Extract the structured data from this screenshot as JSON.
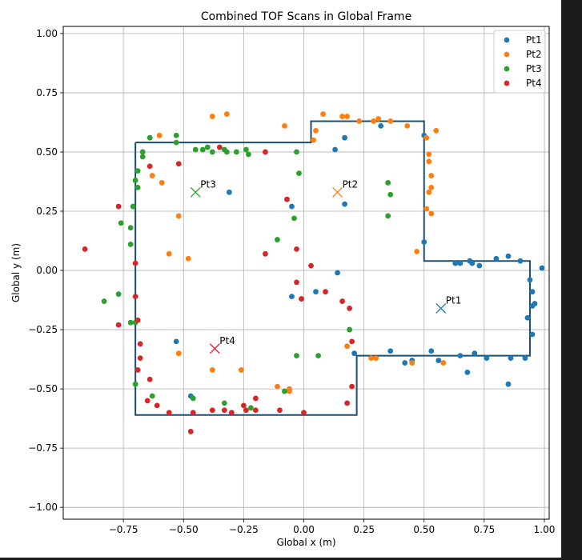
{
  "chart_data": {
    "type": "scatter",
    "title": "Combined TOF Scans in Global Frame",
    "xlabel": "Global x (m)",
    "ylabel": "Global y (m)",
    "xlim": [
      -1.0,
      1.02
    ],
    "ylim": [
      -1.05,
      1.03
    ],
    "xticks": [
      -0.75,
      -0.5,
      -0.25,
      0.0,
      0.25,
      0.5,
      0.75,
      1.0
    ],
    "xtick_labels": [
      "−0.75",
      "−0.50",
      "−0.25",
      "0.00",
      "0.25",
      "0.50",
      "0.75",
      "1.00"
    ],
    "yticks": [
      -1.0,
      -0.75,
      -0.5,
      -0.25,
      0.0,
      0.25,
      0.5,
      0.75,
      1.0
    ],
    "ytick_labels": [
      "−1.00",
      "−0.75",
      "−0.50",
      "−0.25",
      "0.00",
      "0.25",
      "0.50",
      "0.75",
      "1.00"
    ],
    "grid": true,
    "legend_position": "top-right",
    "series": [
      {
        "name": "Pt1",
        "color": "#1f77b4",
        "marker_label": "Pt1",
        "marker": [
          0.57,
          -0.16
        ],
        "points": [
          [
            -0.31,
            0.33
          ],
          [
            -0.05,
            0.27
          ],
          [
            -0.05,
            -0.11
          ],
          [
            0.05,
            -0.09
          ],
          [
            0.13,
            0.51
          ],
          [
            0.14,
            -0.01
          ],
          [
            0.17,
            0.28
          ],
          [
            0.17,
            0.56
          ],
          [
            0.21,
            -0.35
          ],
          [
            0.32,
            0.61
          ],
          [
            0.36,
            -0.34
          ],
          [
            0.42,
            -0.39
          ],
          [
            0.45,
            -0.38
          ],
          [
            0.5,
            0.57
          ],
          [
            0.53,
            -0.34
          ],
          [
            0.56,
            -0.38
          ],
          [
            0.63,
            0.03
          ],
          [
            0.65,
            0.03
          ],
          [
            0.65,
            -0.36
          ],
          [
            0.68,
            -0.43
          ],
          [
            0.69,
            0.04
          ],
          [
            0.7,
            0.03
          ],
          [
            0.71,
            -0.35
          ],
          [
            0.73,
            0.02
          ],
          [
            0.76,
            -0.37
          ],
          [
            0.8,
            0.05
          ],
          [
            0.85,
            0.06
          ],
          [
            0.85,
            -0.48
          ],
          [
            0.86,
            -0.37
          ],
          [
            0.9,
            0.04
          ],
          [
            0.92,
            -0.37
          ],
          [
            0.93,
            -0.2
          ],
          [
            0.94,
            -0.04
          ],
          [
            0.95,
            -0.15
          ],
          [
            0.95,
            -0.09
          ],
          [
            0.96,
            -0.14
          ],
          [
            0.95,
            -0.27
          ],
          [
            0.99,
            0.01
          ],
          [
            -0.53,
            -0.3
          ],
          [
            -0.47,
            -0.53
          ],
          [
            0.5,
            0.12
          ]
        ]
      },
      {
        "name": "Pt2",
        "color": "#ff7f0e",
        "marker_label": "Pt2",
        "marker": [
          0.14,
          0.33
        ],
        "points": [
          [
            -0.38,
            0.65
          ],
          [
            -0.32,
            0.66
          ],
          [
            -0.6,
            0.57
          ],
          [
            -0.63,
            0.4
          ],
          [
            -0.59,
            0.37
          ],
          [
            -0.52,
            0.23
          ],
          [
            -0.56,
            0.07
          ],
          [
            -0.48,
            0.05
          ],
          [
            -0.08,
            0.61
          ],
          [
            0.05,
            0.59
          ],
          [
            0.04,
            0.55
          ],
          [
            0.08,
            0.66
          ],
          [
            0.16,
            0.65
          ],
          [
            0.18,
            0.65
          ],
          [
            0.23,
            0.63
          ],
          [
            0.29,
            0.63
          ],
          [
            0.31,
            0.64
          ],
          [
            0.36,
            0.63
          ],
          [
            0.43,
            0.61
          ],
          [
            0.51,
            0.56
          ],
          [
            0.52,
            0.49
          ],
          [
            0.52,
            0.46
          ],
          [
            0.53,
            0.4
          ],
          [
            0.52,
            0.33
          ],
          [
            0.53,
            0.35
          ],
          [
            0.53,
            0.24
          ],
          [
            0.51,
            0.26
          ],
          [
            0.47,
            0.08
          ],
          [
            0.55,
            0.59
          ],
          [
            -0.52,
            -0.35
          ],
          [
            -0.38,
            -0.42
          ],
          [
            -0.26,
            -0.42
          ],
          [
            -0.11,
            -0.49
          ],
          [
            -0.06,
            -0.5
          ],
          [
            -0.06,
            -0.51
          ],
          [
            0.18,
            -0.32
          ],
          [
            0.28,
            -0.37
          ],
          [
            0.3,
            -0.37
          ],
          [
            0.45,
            -0.39
          ],
          [
            0.58,
            -0.39
          ]
        ]
      },
      {
        "name": "Pt3",
        "color": "#2ca02c",
        "marker_label": "Pt3",
        "marker": [
          -0.45,
          0.33
        ],
        "points": [
          [
            -0.64,
            0.56
          ],
          [
            -0.53,
            0.57
          ],
          [
            -0.53,
            0.54
          ],
          [
            -0.67,
            0.5
          ],
          [
            -0.67,
            0.48
          ],
          [
            -0.45,
            0.51
          ],
          [
            -0.42,
            0.51
          ],
          [
            -0.4,
            0.52
          ],
          [
            -0.38,
            0.5
          ],
          [
            -0.33,
            0.51
          ],
          [
            -0.32,
            0.5
          ],
          [
            -0.28,
            0.5
          ],
          [
            -0.24,
            0.51
          ],
          [
            -0.23,
            0.49
          ],
          [
            -0.03,
            0.5
          ],
          [
            -0.69,
            0.42
          ],
          [
            -0.69,
            0.35
          ],
          [
            -0.7,
            0.38
          ],
          [
            -0.71,
            0.27
          ],
          [
            -0.76,
            0.2
          ],
          [
            -0.72,
            0.18
          ],
          [
            -0.72,
            0.11
          ],
          [
            -0.02,
            0.41
          ],
          [
            0.35,
            0.37
          ],
          [
            0.36,
            0.32
          ],
          [
            0.35,
            0.23
          ],
          [
            -0.04,
            0.22
          ],
          [
            -0.11,
            0.13
          ],
          [
            -0.83,
            -0.13
          ],
          [
            -0.77,
            -0.1
          ],
          [
            -0.72,
            -0.22
          ],
          [
            -0.7,
            -0.22
          ],
          [
            -0.7,
            -0.48
          ],
          [
            -0.63,
            -0.53
          ],
          [
            -0.46,
            -0.54
          ],
          [
            -0.33,
            -0.56
          ],
          [
            -0.22,
            -0.58
          ],
          [
            -0.08,
            -0.51
          ],
          [
            -0.03,
            -0.36
          ],
          [
            0.06,
            -0.36
          ],
          [
            0.19,
            -0.25
          ]
        ]
      },
      {
        "name": "Pt4",
        "color": "#d62728",
        "marker_label": "Pt4",
        "marker": [
          -0.37,
          -0.33
        ],
        "points": [
          [
            -0.91,
            0.09
          ],
          [
            -0.77,
            0.27
          ],
          [
            -0.7,
            0.03
          ],
          [
            -0.7,
            -0.11
          ],
          [
            -0.77,
            -0.23
          ],
          [
            -0.69,
            -0.21
          ],
          [
            -0.68,
            -0.31
          ],
          [
            -0.68,
            -0.37
          ],
          [
            -0.69,
            -0.42
          ],
          [
            -0.64,
            -0.46
          ],
          [
            -0.65,
            -0.55
          ],
          [
            -0.61,
            -0.57
          ],
          [
            -0.56,
            -0.6
          ],
          [
            -0.46,
            -0.6
          ],
          [
            -0.47,
            -0.68
          ],
          [
            -0.38,
            -0.59
          ],
          [
            -0.33,
            -0.59
          ],
          [
            -0.3,
            -0.6
          ],
          [
            -0.25,
            -0.57
          ],
          [
            -0.24,
            -0.59
          ],
          [
            -0.2,
            -0.54
          ],
          [
            -0.2,
            -0.59
          ],
          [
            -0.1,
            -0.59
          ],
          [
            0.0,
            -0.6
          ],
          [
            0.18,
            -0.56
          ],
          [
            0.2,
            -0.49
          ],
          [
            -0.64,
            0.44
          ],
          [
            -0.52,
            0.45
          ],
          [
            -0.35,
            0.52
          ],
          [
            -0.16,
            0.5
          ],
          [
            -0.07,
            0.3
          ],
          [
            -0.03,
            0.09
          ],
          [
            -0.16,
            0.07
          ],
          [
            0.03,
            0.02
          ],
          [
            0.09,
            -0.09
          ],
          [
            0.16,
            -0.13
          ],
          [
            0.19,
            -0.16
          ],
          [
            0.2,
            -0.3
          ],
          [
            -0.01,
            -0.12
          ],
          [
            -0.03,
            -0.05
          ]
        ]
      }
    ],
    "boundary": {
      "color": "#1a4f72",
      "points": [
        [
          -0.7,
          0.54
        ],
        [
          0.03,
          0.54
        ],
        [
          0.03,
          0.63
        ],
        [
          0.5,
          0.63
        ],
        [
          0.5,
          0.04
        ],
        [
          0.94,
          0.04
        ],
        [
          0.94,
          -0.36
        ],
        [
          0.22,
          -0.36
        ],
        [
          0.22,
          -0.61
        ],
        [
          -0.7,
          -0.61
        ],
        [
          -0.7,
          0.54
        ]
      ]
    }
  }
}
